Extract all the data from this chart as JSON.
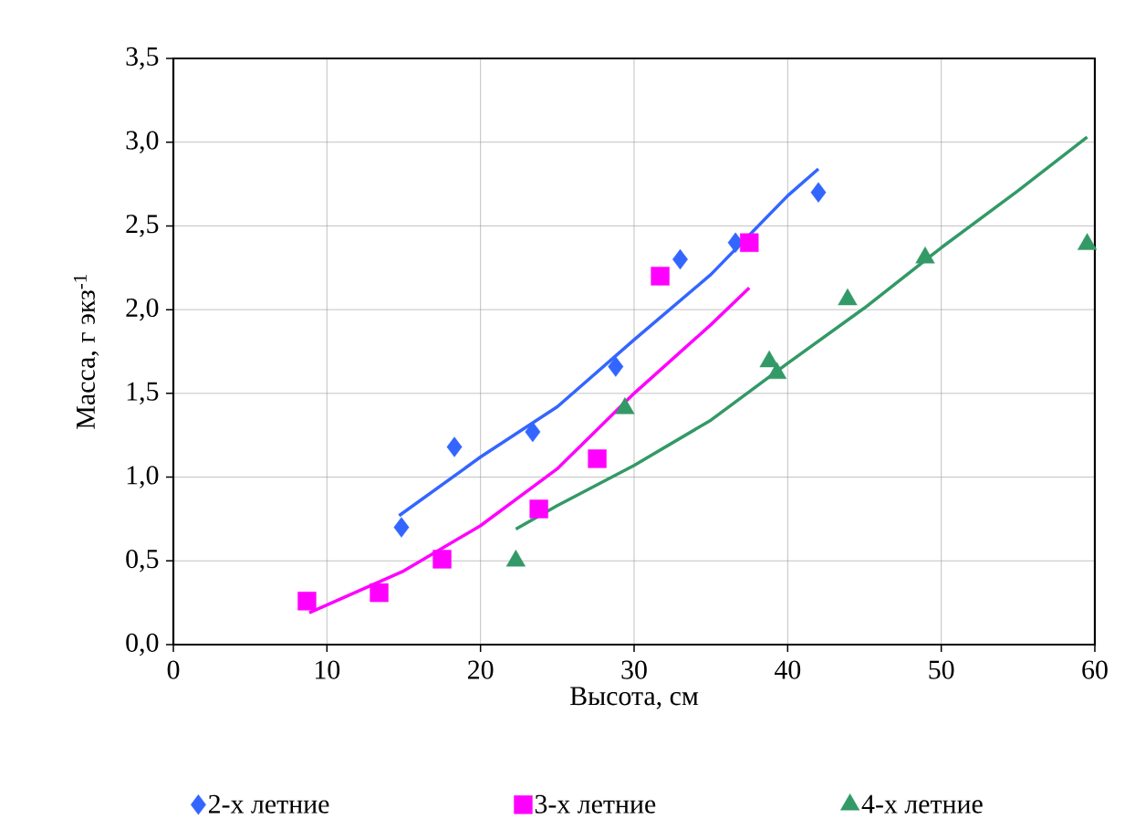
{
  "chart_data": {
    "type": "scatter",
    "xlabel": "Высота, см",
    "ylabel": "Масса, г экз$^{-1}$",
    "xlim": [
      0,
      60
    ],
    "xticks": [
      0,
      10,
      20,
      30,
      40,
      50,
      60
    ],
    "ylim": [
      0,
      3.5
    ],
    "yticks": [
      {
        "value": 0,
        "label": "0,0"
      },
      {
        "value": 0.5,
        "label": "0,5"
      },
      {
        "value": 1,
        "label": "1,0"
      },
      {
        "value": 1.5,
        "label": "1,5"
      },
      {
        "value": 2,
        "label": "2,0"
      },
      {
        "value": 2.5,
        "label": "2,5"
      },
      {
        "value": 3,
        "label": "3,0"
      },
      {
        "value": 3.5,
        "label": "3,5"
      }
    ],
    "grid": true,
    "legend": "bottom",
    "series": [
      {
        "name": "2-х летние",
        "marker": "diamond",
        "color": "#3366ff",
        "x": [
          14.85,
          18.3,
          23.4,
          28.8,
          33.0,
          36.6,
          42.0
        ],
        "values": [
          0.7,
          1.18,
          1.27,
          1.66,
          2.3,
          2.4,
          2.7
        ]
      },
      {
        "name": "3-х летние",
        "marker": "square",
        "color": "#ff00ff",
        "x": [
          8.7,
          13.4,
          17.5,
          23.8,
          27.6,
          31.7,
          37.5
        ],
        "values": [
          0.26,
          0.31,
          0.51,
          0.81,
          1.11,
          2.2,
          2.4
        ]
      },
      {
        "name": "4-х летние",
        "marker": "triangle",
        "color": "#339966",
        "x": [
          22.3,
          29.4,
          38.8,
          39.3,
          43.9,
          48.95,
          59.5
        ],
        "values": [
          0.5,
          1.41,
          1.69,
          1.62,
          2.06,
          2.31,
          2.39
        ]
      },
      {
        "type": "line",
        "marker": "none",
        "color": "#3366ff",
        "x": [
          14.7,
          20,
          25,
          30,
          35,
          40,
          42
        ],
        "values": [
          0.77,
          1.12,
          1.42,
          1.82,
          2.21,
          2.68,
          2.84
        ]
      },
      {
        "type": "line",
        "marker": "none",
        "color": "#ff00ff",
        "x": [
          8.85,
          15,
          20,
          25,
          30,
          35,
          37.5
        ],
        "values": [
          0.19,
          0.44,
          0.71,
          1.05,
          1.5,
          1.91,
          2.13
        ]
      },
      {
        "type": "line",
        "marker": "none",
        "color": "#339966",
        "x": [
          22.3,
          25,
          30,
          35,
          40,
          45,
          50,
          55,
          59.5
        ],
        "values": [
          0.69,
          0.83,
          1.07,
          1.34,
          1.68,
          2.01,
          2.37,
          2.71,
          3.03
        ]
      }
    ]
  }
}
